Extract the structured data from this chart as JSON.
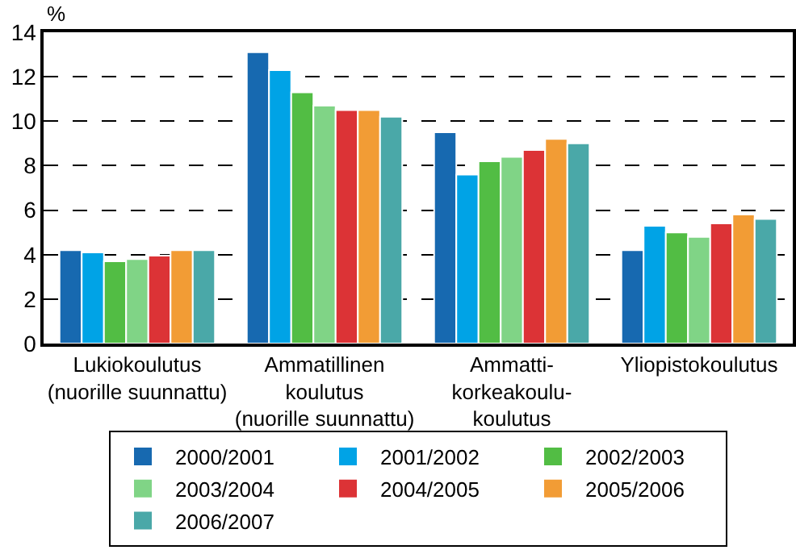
{
  "chart_data": {
    "type": "bar",
    "ylabel": "%",
    "categories": [
      "Lukiokoulutus\n(nuorille suunnattu)",
      "Ammatillinen\nkoulutus\n(nuorille suunnattu)",
      "Ammatti-\nkorkeakoulu-\nkoulutus",
      "Yliopistokoulutus"
    ],
    "series": [
      {
        "name": "2000/2001",
        "color": "#1769b0",
        "values": [
          4.2,
          13.1,
          9.5,
          4.2
        ]
      },
      {
        "name": "2001/2002",
        "color": "#00a3e6",
        "values": [
          4.1,
          12.3,
          7.6,
          5.3
        ]
      },
      {
        "name": "2002/2003",
        "color": "#52bd44",
        "values": [
          3.7,
          11.3,
          8.2,
          5.0
        ]
      },
      {
        "name": "2003/2004",
        "color": "#80d486",
        "values": [
          3.8,
          10.7,
          8.4,
          4.8
        ]
      },
      {
        "name": "2004/2005",
        "color": "#dc3336",
        "values": [
          3.95,
          10.5,
          8.7,
          5.4
        ]
      },
      {
        "name": "2005/2006",
        "color": "#f29c35",
        "values": [
          4.2,
          10.5,
          9.2,
          5.8
        ]
      },
      {
        "name": "2006/2007",
        "color": "#4aa8a8",
        "values": [
          4.2,
          10.2,
          9.0,
          5.6
        ]
      }
    ],
    "ylim": [
      0,
      14
    ],
    "yticks": [
      0,
      2,
      4,
      6,
      8,
      10,
      12,
      14
    ],
    "grid": "y",
    "legend": "bottom"
  }
}
